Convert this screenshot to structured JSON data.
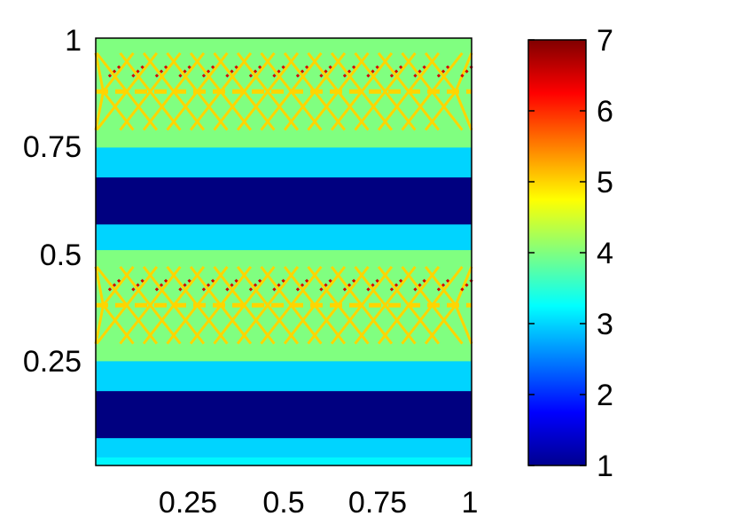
{
  "chart_data": {
    "type": "heatmap",
    "title": "",
    "xlabel": "",
    "ylabel": "",
    "xlim": [
      0,
      1
    ],
    "ylim": [
      0,
      1
    ],
    "x_ticks": [
      {
        "value": 0.25,
        "label": "0.25"
      },
      {
        "value": 0.5,
        "label": "0.5"
      },
      {
        "value": 0.75,
        "label": "0.75"
      },
      {
        "value": 1,
        "label": "1"
      }
    ],
    "y_ticks": [
      {
        "value": 0.25,
        "label": "0.25"
      },
      {
        "value": 0.5,
        "label": "0.5"
      },
      {
        "value": 0.75,
        "label": "0.75"
      },
      {
        "value": 1,
        "label": "1"
      }
    ],
    "colormap": "jet",
    "colorbar": {
      "range": [
        1,
        7
      ],
      "ticks": [
        {
          "value": 1,
          "label": "1"
        },
        {
          "value": 2,
          "label": "2"
        },
        {
          "value": 3,
          "label": "3"
        },
        {
          "value": 4,
          "label": "4"
        },
        {
          "value": 5,
          "label": "5"
        },
        {
          "value": 6,
          "label": "6"
        },
        {
          "value": 7,
          "label": "7"
        }
      ]
    },
    "bands": [
      {
        "y0": 0.0,
        "y1": 0.02,
        "value": 3.2
      },
      {
        "y0": 0.02,
        "y1": 0.065,
        "value": 3.0
      },
      {
        "y0": 0.065,
        "y1": 0.175,
        "value": 1.0
      },
      {
        "y0": 0.175,
        "y1": 0.245,
        "value": 3.0
      },
      {
        "y0": 0.245,
        "y1": 0.505,
        "value": 4.0
      },
      {
        "y0": 0.505,
        "y1": 0.565,
        "value": 3.0
      },
      {
        "y0": 0.565,
        "y1": 0.675,
        "value": 1.0
      },
      {
        "y0": 0.675,
        "y1": 0.745,
        "value": 3.0
      },
      {
        "y0": 0.745,
        "y1": 1.0,
        "value": 4.0
      }
    ],
    "ridge_centers": [
      0.375,
      0.875
    ],
    "ridge_value": 5.0,
    "peak_value": 6.5
  }
}
